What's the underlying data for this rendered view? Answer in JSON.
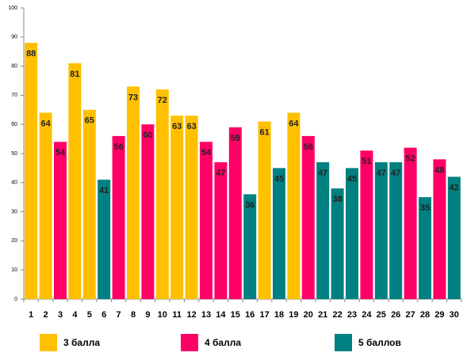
{
  "chart_data": {
    "type": "bar",
    "categories": [
      "1",
      "2",
      "3",
      "4",
      "5",
      "6",
      "7",
      "8",
      "9",
      "10",
      "11",
      "12",
      "13",
      "14",
      "15",
      "16",
      "17",
      "18",
      "19",
      "20",
      "21",
      "22",
      "23",
      "24",
      "25",
      "26",
      "27",
      "28",
      "29",
      "30"
    ],
    "series": [
      {
        "name": "3 балла",
        "color": "#FFC000",
        "values": [
          88,
          64,
          null,
          81,
          65,
          null,
          null,
          73,
          null,
          72,
          63,
          63,
          null,
          null,
          null,
          null,
          61,
          null,
          64,
          null,
          null,
          null,
          null,
          null,
          null,
          null,
          null,
          null,
          null,
          null
        ]
      },
      {
        "name": "4 балла",
        "color": "#FF0066",
        "values": [
          null,
          null,
          54,
          null,
          null,
          null,
          56,
          null,
          60,
          null,
          null,
          null,
          54,
          47,
          59,
          null,
          null,
          null,
          null,
          56,
          null,
          null,
          null,
          51,
          null,
          null,
          52,
          null,
          48,
          null
        ]
      },
      {
        "name": "5 баллов",
        "color": "#008080",
        "values": [
          null,
          null,
          null,
          null,
          null,
          41,
          null,
          null,
          null,
          null,
          null,
          null,
          null,
          null,
          null,
          36,
          null,
          45,
          null,
          null,
          47,
          38,
          45,
          null,
          47,
          47,
          null,
          35,
          null,
          42
        ]
      }
    ],
    "ylim": [
      0,
      100
    ],
    "yticks": [
      0,
      10,
      20,
      30,
      40,
      50,
      60,
      70,
      80,
      90,
      100
    ],
    "grid": false,
    "legend": "bottom"
  }
}
